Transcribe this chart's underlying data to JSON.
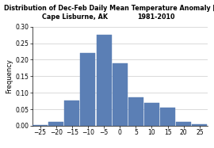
{
  "title_line1": "Distribution of Dec-Feb Daily Mean Temperature Anomaly [°C]",
  "title_line2_left": "Cape Lisburne, AK",
  "title_line2_right": "1981-2010",
  "ylabel": "Frequency",
  "bar_centers": [
    -25,
    -20,
    -15,
    -10,
    -5,
    0,
    5,
    10,
    15,
    20,
    25
  ],
  "bar_heights": [
    0.003,
    0.012,
    0.077,
    0.22,
    0.275,
    0.188,
    0.087,
    0.07,
    0.054,
    0.011,
    0.004
  ],
  "bar_width": 4.7,
  "bar_color": "#5b7fb5",
  "bar_edge_color": "#5b7fb5",
  "background_color": "#ffffff",
  "ylim": [
    0,
    0.3
  ],
  "xlim": [
    -27.5,
    27.5
  ],
  "xticks": [
    -25,
    -20,
    -15,
    -10,
    -5,
    0,
    5,
    10,
    15,
    20,
    25
  ],
  "yticks": [
    0,
    0.05,
    0.1,
    0.15,
    0.2,
    0.25,
    0.3
  ],
  "grid_color": "#cccccc",
  "title_fontsize": 5.8,
  "axis_label_fontsize": 6.0,
  "tick_fontsize": 5.5
}
